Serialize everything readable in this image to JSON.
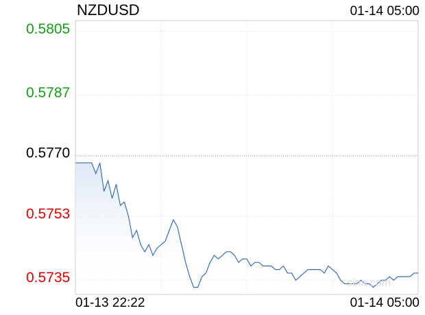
{
  "header": {
    "symbol": "NZDUSD",
    "timestamp": "01-14 05:00"
  },
  "colors": {
    "up": "#1a9a1a",
    "down": "#e00000",
    "neutral": "#000000",
    "line": "#3a6db5",
    "fill_top": "#dbe6f5"
  },
  "chart_data": {
    "type": "line",
    "title": "NZDUSD",
    "ylim": [
      0.5731,
      0.5808
    ],
    "reference_price": 0.577,
    "y_ticks": [
      {
        "label": "0.5805",
        "value": 0.5805,
        "color": "up"
      },
      {
        "label": "0.5787",
        "value": 0.5787,
        "color": "up"
      },
      {
        "label": "0.5770",
        "value": 0.577,
        "color": "neutral"
      },
      {
        "label": "0.5753",
        "value": 0.5753,
        "color": "down"
      },
      {
        "label": "0.5735",
        "value": 0.5735,
        "color": "down"
      }
    ],
    "x_labels": [
      "01-13 22:22",
      "01-14 05:00"
    ],
    "grid": true,
    "watermark": "sina.com",
    "series": [
      {
        "values": [
          0.5768,
          0.5768,
          0.5768,
          0.5768,
          0.5768,
          0.5765,
          0.5768,
          0.576,
          0.5763,
          0.5758,
          0.5762,
          0.5756,
          0.5757,
          0.5753,
          0.5747,
          0.5749,
          0.5745,
          0.5743,
          0.5745,
          0.5742,
          0.5744,
          0.5745,
          0.5746,
          0.5749,
          0.5752,
          0.575,
          0.5745,
          0.574,
          0.5736,
          0.5733,
          0.5733,
          0.5736,
          0.5737,
          0.574,
          0.5742,
          0.5741,
          0.5742,
          0.5743,
          0.5743,
          0.5742,
          0.574,
          0.5741,
          0.5741,
          0.5739,
          0.574,
          0.574,
          0.5739,
          0.5739,
          0.5739,
          0.5738,
          0.5738,
          0.5739,
          0.5737,
          0.5737,
          0.5735,
          0.5736,
          0.5737,
          0.5738,
          0.5738,
          0.5738,
          0.5738,
          0.5737,
          0.5739,
          0.5738,
          0.5737,
          0.5735,
          0.5734,
          0.5734,
          0.5734,
          0.5734,
          0.5735,
          0.5734,
          0.5734,
          0.5733,
          0.5734,
          0.5735,
          0.5735,
          0.5736,
          0.5735,
          0.5736,
          0.5736,
          0.5736,
          0.5736,
          0.5737,
          0.5737
        ]
      }
    ]
  }
}
